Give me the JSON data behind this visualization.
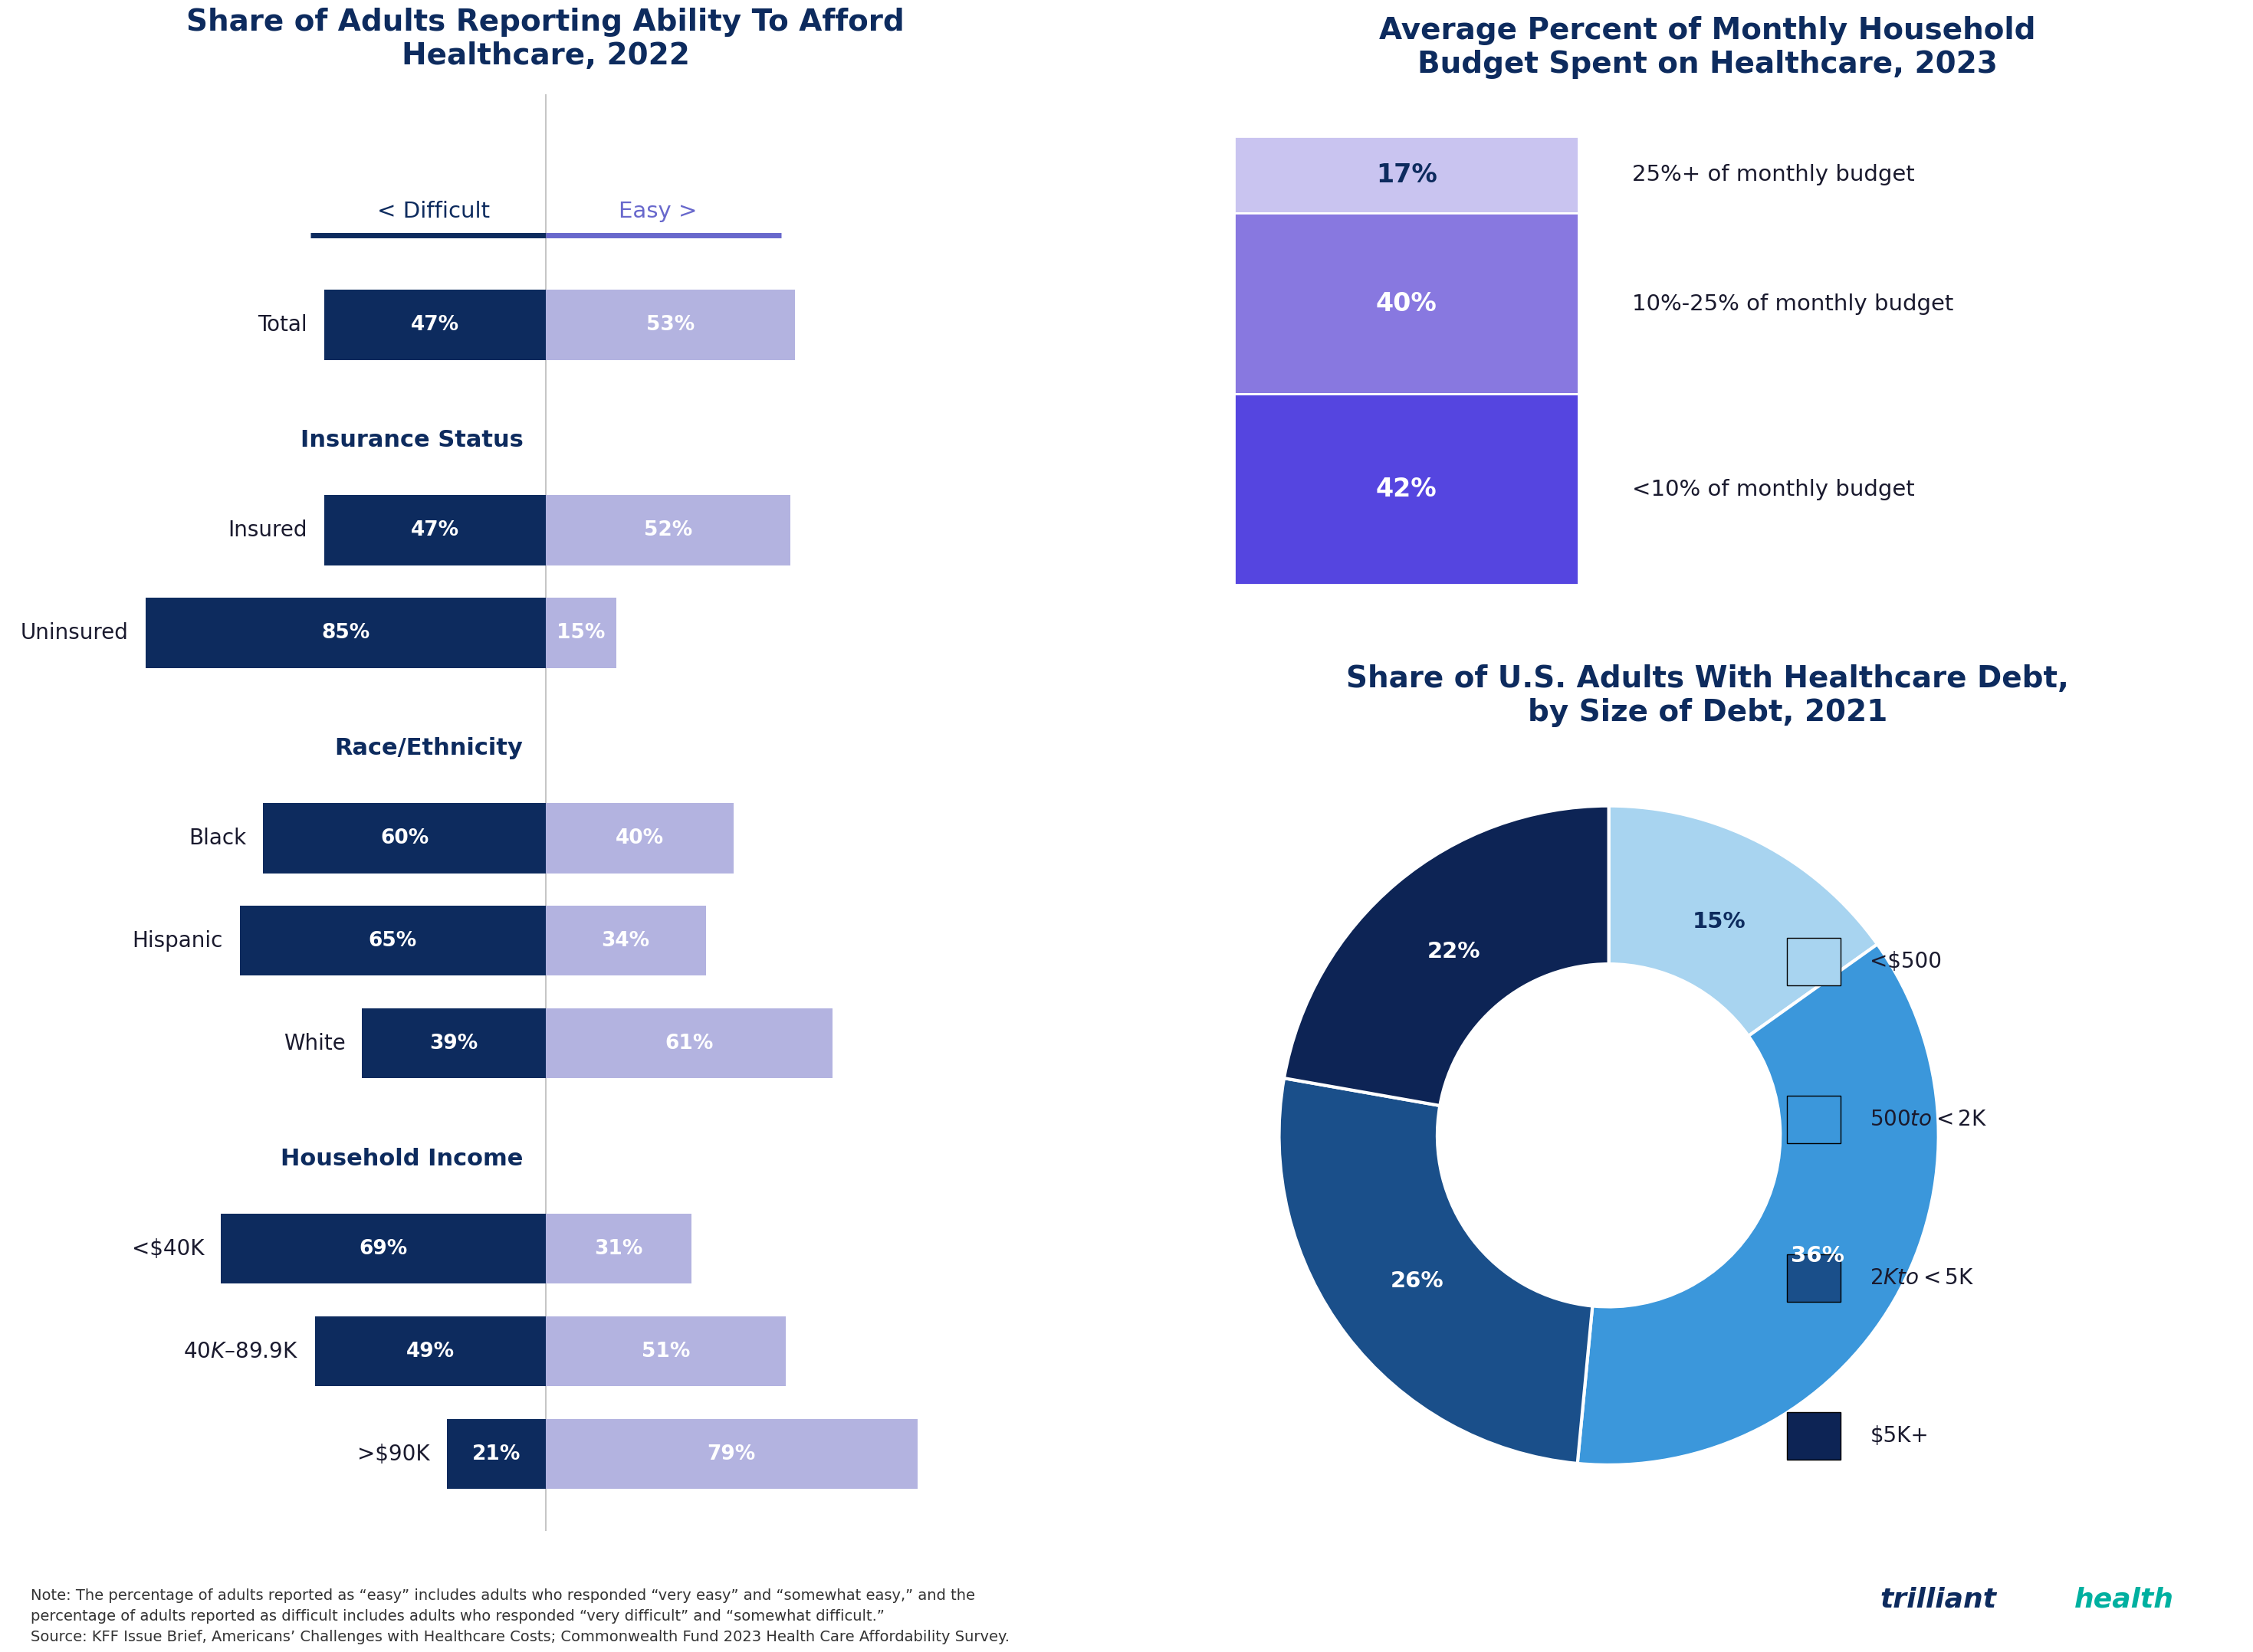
{
  "title_left": "Share of Adults Reporting Ability To Afford\nHealthcare, 2022",
  "title_right_top": "Average Percent of Monthly Household\nBudget Spent on Healthcare, 2023",
  "title_right_bottom": "Share of U.S. Adults With Healthcare Debt,\nby Size of Debt, 2021",
  "difficult": [
    47,
    47,
    85,
    60,
    65,
    39,
    69,
    49,
    21
  ],
  "easy": [
    53,
    52,
    15,
    40,
    34,
    61,
    31,
    51,
    79
  ],
  "color_difficult": "#0d2b5e",
  "color_easy": "#b3b3e0",
  "easy_label_color": "#6868cc",
  "budget_values": [
    17,
    40,
    42
  ],
  "budget_labels_right": [
    "25%+ of monthly budget",
    "10%-25% of monthly budget",
    "<10% of monthly budget"
  ],
  "budget_colors": [
    "#c9c4f0",
    "#8878e0",
    "#5545e0"
  ],
  "budget_pct_labels": [
    "17%",
    "40%",
    "42%"
  ],
  "pie_values": [
    15,
    36,
    26,
    22
  ],
  "pie_labels": [
    "<$500",
    "$500 to <$2K",
    "$2K to <$5K",
    "$5K+"
  ],
  "pie_colors": [
    "#a8d4f0",
    "#3b97db",
    "#1a4f8a",
    "#0d2455"
  ],
  "pie_pct_labels": [
    "15%",
    "36%",
    "26%",
    "22%"
  ],
  "note_text": "Note: The percentage of adults reported as “easy” includes adults who responded “very easy” and “somewhat easy,” and the\npercentage of adults reported as difficult includes adults who responded “very difficult” and “somewhat difficult.”\nSource: KFF Issue Brief, Americans’ Challenges with Healthcare Costs; Commonwealth Fund 2023 Health Care Affordability Survey.",
  "background_color": "#ffffff",
  "title_color": "#0d2b5e",
  "label_color": "#1a1a2e"
}
